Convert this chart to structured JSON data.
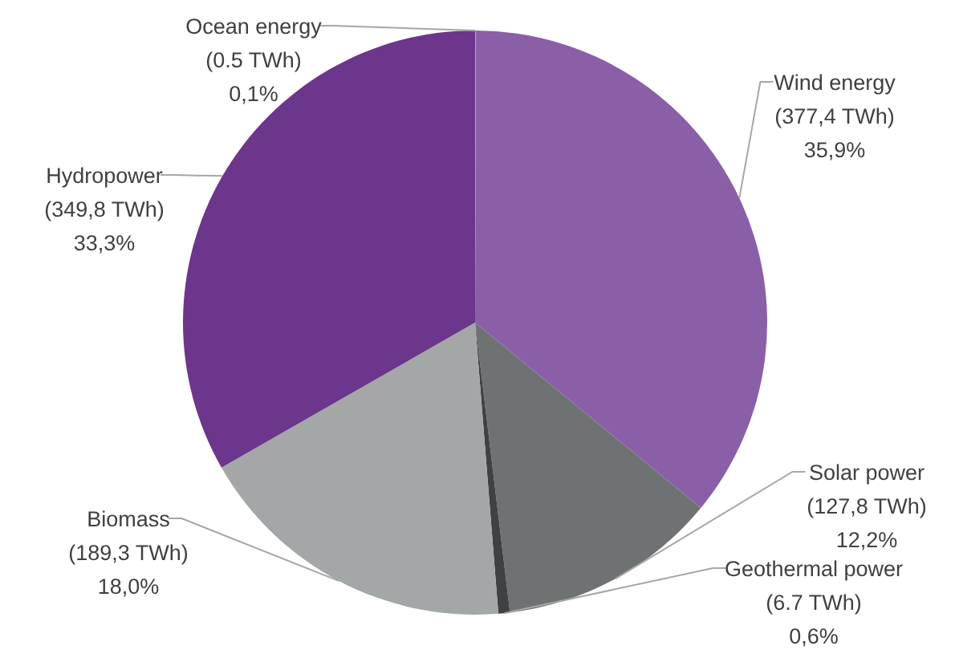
{
  "chart_data": {
    "type": "pie",
    "categories": [
      "Ocean energy",
      "Wind energy",
      "Solar power",
      "Geothermal power",
      "Biomass",
      "Hydropower"
    ],
    "values": [
      0.5,
      377.4,
      127.8,
      6.7,
      189.3,
      349.8
    ],
    "value_labels": [
      "(0.5 TWh)\n0,1%",
      "(377,4 TWh)\n35,9%",
      "(127,8 TWh)\n12,2%",
      "(6.7 TWh)\n0,6%",
      "(189,3 TWh)\n18,0%",
      "(349,8 TWh)\n33,3%"
    ],
    "colors": [
      "#8fb4e0",
      "#8a5fa8",
      "#6f7273",
      "#3f4242",
      "#a4a7a7",
      "#6c368c"
    ],
    "legend": false
  }
}
